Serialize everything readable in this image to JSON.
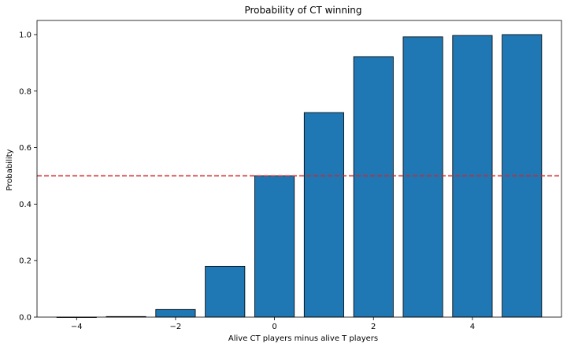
{
  "chart_data": {
    "type": "bar",
    "title": "Probability of CT winning",
    "xlabel": "Alive CT players minus alive T players",
    "ylabel": "Probability",
    "x": [
      -4,
      -3,
      -2,
      -1,
      0,
      1,
      2,
      3,
      4,
      5
    ],
    "values": [
      0.0,
      0.002,
      0.027,
      0.18,
      0.5,
      0.724,
      0.922,
      0.992,
      0.997,
      1.0
    ],
    "xlim": [
      -4.8,
      5.8
    ],
    "ylim": [
      0,
      1.05
    ],
    "xticks": [
      -4,
      -2,
      0,
      2,
      4
    ],
    "xtick_labels": [
      "−4",
      "−2",
      "0",
      "2",
      "4"
    ],
    "yticks": [
      0.0,
      0.2,
      0.4,
      0.6,
      0.8,
      1.0
    ],
    "ytick_labels": [
      "0.0",
      "0.2",
      "0.4",
      "0.6",
      "0.8",
      "1.0"
    ],
    "bar_width": 0.8,
    "bar_color": "#1f77b4",
    "bar_edge_color": "#000000",
    "reference_line": {
      "y": 0.5,
      "color": "#d62728",
      "style": "dashed"
    },
    "grid": false,
    "legend": "none"
  }
}
